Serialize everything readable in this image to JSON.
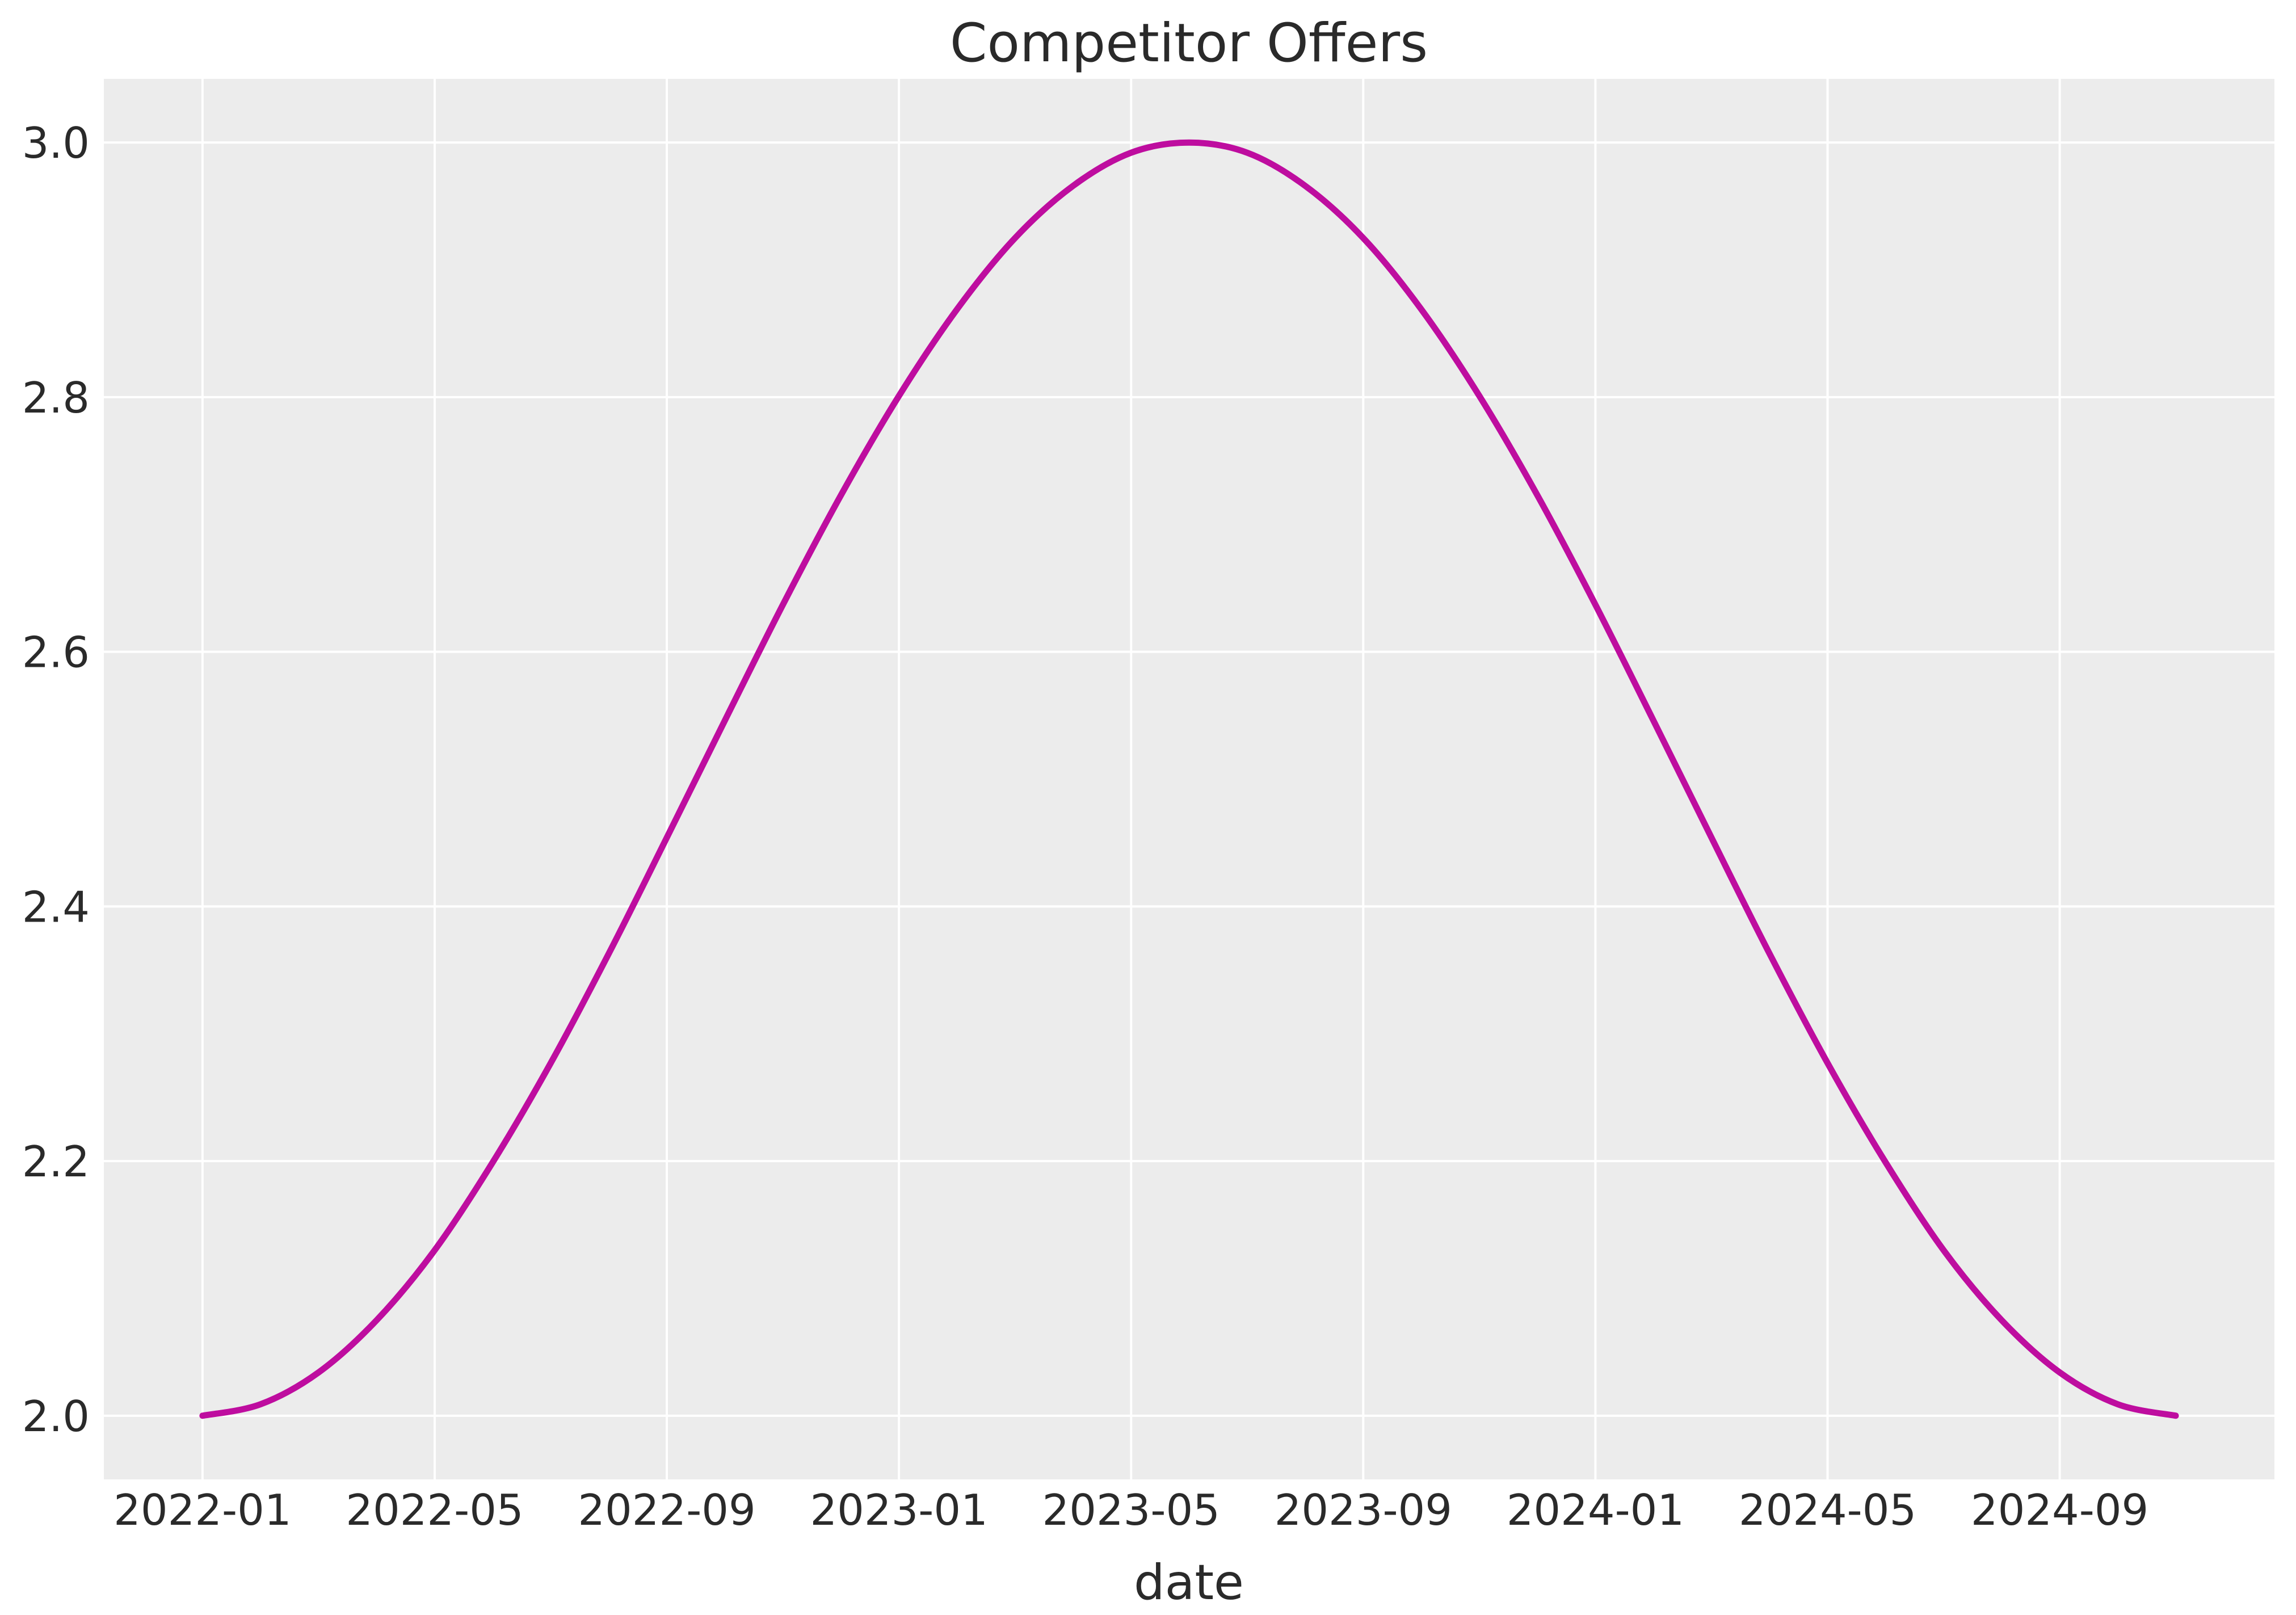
{
  "title": "Competitor Offers",
  "xlabel": "date",
  "colors": {
    "figure_background": "#FFFFFF",
    "plot_background": "#ECECEC",
    "grid": "#FFFFFF",
    "line": "#BE0D9F",
    "text": "#2A2A2A"
  },
  "chart_data": {
    "type": "line",
    "title": "Competitor Offers",
    "xlabel": "date",
    "ylabel": "",
    "grid": true,
    "legend": false,
    "plot_background": "#ECECEC",
    "grid_color": "#FFFFFF",
    "series": [
      {
        "name": "Competitor Offers",
        "color": "#BE0D9F",
        "x": [
          "2022-01",
          "2022-02",
          "2022-03",
          "2022-04",
          "2022-05",
          "2022-06",
          "2022-07",
          "2022-08",
          "2022-09",
          "2022-10",
          "2022-11",
          "2022-12",
          "2023-01",
          "2023-02",
          "2023-03",
          "2023-04",
          "2023-05",
          "2023-06",
          "2023-07",
          "2023-08",
          "2023-09",
          "2023-10",
          "2023-11",
          "2023-12",
          "2024-01",
          "2024-02",
          "2024-03",
          "2024-04",
          "2024-05",
          "2024-06",
          "2024-07",
          "2024-08",
          "2024-09",
          "2024-10",
          "2024-11"
        ],
        "y": [
          2.0,
          2.009,
          2.034,
          2.075,
          2.13,
          2.199,
          2.277,
          2.363,
          2.454,
          2.546,
          2.637,
          2.723,
          2.801,
          2.869,
          2.925,
          2.966,
          2.992,
          3.0,
          2.992,
          2.966,
          2.925,
          2.869,
          2.801,
          2.723,
          2.637,
          2.546,
          2.454,
          2.363,
          2.277,
          2.199,
          2.13,
          2.075,
          2.034,
          2.009,
          2.0
        ]
      }
    ],
    "x_tick_labels": [
      "2022-01",
      "2022-05",
      "2022-09",
      "2023-01",
      "2023-05",
      "2023-09",
      "2024-01",
      "2024-05",
      "2024-09"
    ],
    "x_tick_positions": [
      0,
      4,
      8,
      12,
      16,
      20,
      24,
      28,
      32
    ],
    "y_ticks": [
      "2.0",
      "2.2",
      "2.4",
      "2.6",
      "2.8",
      "3.0"
    ],
    "y_tick_values": [
      2.0,
      2.2,
      2.4,
      2.6,
      2.8,
      3.0
    ],
    "xlim_months": [
      -1.7,
      35.7
    ],
    "ylim": [
      1.95,
      3.05
    ]
  }
}
